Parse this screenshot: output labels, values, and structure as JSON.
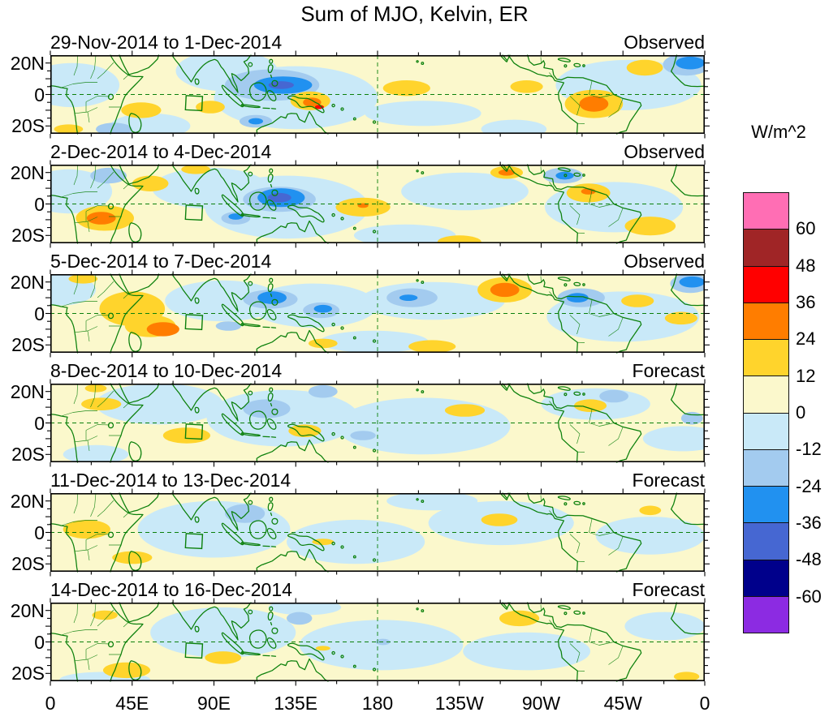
{
  "chart_data": {
    "type": "heatmap",
    "title": "Sum of MJO, Kelvin, ER",
    "units": "W/m^2",
    "projection": "tropical strip 25N-25S, longitude 0-360E",
    "colorbar": {
      "levels": [
        60,
        48,
        36,
        24,
        12,
        0,
        -12,
        -24,
        -36,
        -48,
        -60
      ],
      "tick_labels": [
        "60",
        "48",
        "36",
        "24",
        "12",
        "0",
        "-12",
        "-24",
        "-36",
        "-48",
        "-60"
      ],
      "colors": [
        "#FF6EB4",
        "#A02526",
        "#FF0000",
        "#FF7D00",
        "#FFD42C",
        "#FBF8CC",
        "#C9E9F8",
        "#A3CBEF",
        "#2191F0",
        "#4667D2",
        "#00008B",
        "#8C2BE2"
      ]
    },
    "lat_ticks": [
      {
        "label": "20N",
        "lat": 20
      },
      {
        "label": "0",
        "lat": 0
      },
      {
        "label": "20S",
        "lat": -20
      }
    ],
    "lon_ticks": [
      {
        "label": "0",
        "lon": 0
      },
      {
        "label": "45E",
        "lon": 45
      },
      {
        "label": "90E",
        "lon": 90
      },
      {
        "label": "135E",
        "lon": 135
      },
      {
        "label": "180",
        "lon": 180
      },
      {
        "label": "135W",
        "lon": 225
      },
      {
        "label": "90W",
        "lon": 270
      },
      {
        "label": "45W",
        "lon": 315
      },
      {
        "label": "0",
        "lon": 360
      }
    ],
    "panels": [
      {
        "period": "29-Nov-2014 to 1-Dec-2014",
        "label": "Observed",
        "anomalies": [
          [
            12,
            6,
            26,
            14,
            -6
          ],
          [
            97,
            15,
            28,
            13,
            -6
          ],
          [
            135,
            -2,
            45,
            20,
            -6
          ],
          [
            55,
            -20,
            22,
            8,
            -6
          ],
          [
            205,
            -12,
            32,
            8,
            -6
          ],
          [
            318,
            6,
            40,
            16,
            -6
          ],
          [
            255,
            -22,
            18,
            6,
            -6
          ],
          [
            122,
            6,
            26,
            10,
            -18
          ],
          [
            350,
            19,
            13,
            7,
            -18
          ],
          [
            113,
            -17,
            9,
            4,
            -18
          ],
          [
            35,
            -22,
            10,
            4,
            -18
          ],
          [
            128,
            6,
            16,
            5.5,
            -30
          ],
          [
            352,
            20,
            8,
            4,
            -30
          ],
          [
            113,
            -17,
            4,
            2,
            -30
          ],
          [
            127,
            6,
            7,
            2.5,
            -42
          ],
          [
            50,
            -10,
            11,
            5,
            18
          ],
          [
            88,
            -8,
            8,
            4,
            18
          ],
          [
            143,
            -4,
            11,
            6,
            18
          ],
          [
            196,
            4,
            13,
            5,
            18
          ],
          [
            262,
            5,
            9,
            4,
            18
          ],
          [
            299,
            -6,
            16,
            9,
            18
          ],
          [
            327,
            17,
            10,
            5,
            18
          ],
          [
            10,
            -22,
            8,
            3,
            18
          ],
          [
            299,
            -6,
            8,
            5,
            30
          ],
          [
            144,
            -5,
            5,
            3,
            30
          ],
          [
            148,
            -8,
            2.5,
            1.3,
            42
          ]
        ]
      },
      {
        "period": "2-Dec-2014 to 4-Dec-2014",
        "label": "Observed",
        "anomalies": [
          [
            10,
            8,
            24,
            14,
            -6
          ],
          [
            88,
            10,
            32,
            13,
            -6
          ],
          [
            130,
            -2,
            45,
            20,
            -6
          ],
          [
            228,
            8,
            35,
            12,
            -6
          ],
          [
            310,
            -2,
            38,
            16,
            -6
          ],
          [
            195,
            -20,
            28,
            7,
            -6
          ],
          [
            126,
            3,
            20,
            8,
            -18
          ],
          [
            282,
            18,
            11,
            5,
            -18
          ],
          [
            102,
            -9,
            8,
            4,
            -18
          ],
          [
            32,
            18,
            10,
            5,
            -18
          ],
          [
            127,
            4,
            13,
            6,
            -30
          ],
          [
            283,
            18,
            5,
            2.5,
            -30
          ],
          [
            102,
            -8,
            4,
            2,
            -30
          ],
          [
            126,
            4,
            6.5,
            3,
            -42
          ],
          [
            30,
            -9,
            16,
            8,
            18
          ],
          [
            55,
            13,
            10,
            5,
            18
          ],
          [
            172,
            -2,
            15,
            6,
            18
          ],
          [
            296,
            7,
            12,
            6,
            18
          ],
          [
            251,
            20,
            9,
            4,
            18
          ],
          [
            330,
            -14,
            14,
            6,
            18
          ],
          [
            225,
            -24,
            12,
            4,
            18
          ],
          [
            80,
            22,
            8,
            3,
            18
          ],
          [
            28,
            -9,
            8,
            4,
            30
          ],
          [
            296,
            8,
            4,
            2,
            30
          ],
          [
            251,
            20,
            4.5,
            2,
            30
          ],
          [
            172,
            -1,
            3,
            1.5,
            30
          ]
        ]
      },
      {
        "period": "5-Dec-2014 to 7-Dec-2014",
        "label": "Observed",
        "anomalies": [
          [
            5,
            15,
            20,
            10,
            -6
          ],
          [
            95,
            8,
            32,
            13,
            -6
          ],
          [
            145,
            5,
            35,
            14,
            -6
          ],
          [
            210,
            8,
            40,
            12,
            -6
          ],
          [
            315,
            -2,
            42,
            16,
            -6
          ],
          [
            178,
            -18,
            30,
            7,
            -6
          ],
          [
            121,
            9,
            15,
            6,
            -18
          ],
          [
            149,
            2,
            10,
            5,
            -18
          ],
          [
            199,
            10,
            14,
            6,
            -18
          ],
          [
            292,
            10,
            13,
            6,
            -18
          ],
          [
            352,
            19,
            11,
            6,
            -18
          ],
          [
            98,
            -8,
            7,
            3,
            -18
          ],
          [
            122,
            10,
            8,
            4,
            -30
          ],
          [
            150,
            3,
            5,
            2.5,
            -30
          ],
          [
            197,
            10,
            5,
            2,
            -30
          ],
          [
            290,
            10,
            6,
            3,
            -30
          ],
          [
            353,
            20,
            7,
            3.5,
            -30
          ],
          [
            45,
            3,
            18,
            11,
            18
          ],
          [
            55,
            -8,
            14,
            7,
            18
          ],
          [
            250,
            15,
            15,
            8,
            18
          ],
          [
            210,
            -21,
            13,
            4,
            18
          ],
          [
            323,
            8,
            9,
            4,
            18
          ],
          [
            347,
            -3,
            9,
            4,
            18
          ],
          [
            150,
            -19,
            8,
            3,
            18
          ],
          [
            18,
            22,
            8,
            3,
            18
          ],
          [
            62,
            -10,
            9,
            4.5,
            30
          ],
          [
            250,
            15,
            8,
            4.5,
            30
          ]
        ]
      },
      {
        "period": "8-Dec-2014 to 10-Dec-2014",
        "label": "Forecast",
        "anomalies": [
          [
            60,
            12,
            35,
            13,
            -6
          ],
          [
            128,
            3,
            42,
            18,
            -6
          ],
          [
            205,
            -2,
            48,
            18,
            -6
          ],
          [
            300,
            12,
            30,
            10,
            -6
          ],
          [
            348,
            -10,
            22,
            8,
            -6
          ],
          [
            25,
            -20,
            18,
            6,
            -6
          ],
          [
            119,
            9,
            13,
            6,
            -18
          ],
          [
            172,
            -8,
            7,
            3,
            -18
          ],
          [
            310,
            17,
            8,
            4,
            -18
          ],
          [
            150,
            20,
            8,
            4,
            -18
          ],
          [
            353,
            3,
            6,
            4,
            -18
          ],
          [
            28,
            12,
            11,
            4,
            18
          ],
          [
            75,
            -8,
            13,
            5,
            18
          ],
          [
            140,
            -5,
            9,
            4,
            18
          ],
          [
            228,
            8,
            11,
            4,
            18
          ],
          [
            297,
            11,
            9,
            4,
            18
          ],
          [
            25,
            22,
            6,
            2.5,
            18
          ]
        ]
      },
      {
        "period": "11-Dec-2014 to 13-Dec-2014",
        "label": "Forecast",
        "anomalies": [
          [
            90,
            2,
            42,
            18,
            -6
          ],
          [
            168,
            -6,
            38,
            14,
            -6
          ],
          [
            248,
            6,
            40,
            14,
            -6
          ],
          [
            330,
            -2,
            30,
            12,
            -6
          ],
          [
            210,
            20,
            25,
            6,
            -6
          ],
          [
            107,
            12,
            11,
            6,
            -18
          ],
          [
            20,
            2,
            13,
            6,
            18
          ],
          [
            45,
            -16,
            11,
            4,
            18
          ],
          [
            247,
            8,
            10,
            4,
            18
          ],
          [
            150,
            -6,
            6,
            2,
            18
          ],
          [
            330,
            14,
            6,
            3,
            18
          ]
        ]
      },
      {
        "period": "14-Dec-2014 to 16-Dec-2014",
        "label": "Forecast",
        "anomalies": [
          [
            95,
            6,
            40,
            16,
            -6
          ],
          [
            182,
            -2,
            45,
            16,
            -6
          ],
          [
            262,
            -6,
            35,
            12,
            -6
          ],
          [
            338,
            10,
            22,
            9,
            -6
          ],
          [
            30,
            -24,
            25,
            5,
            -6
          ],
          [
            140,
            22,
            20,
            5,
            -6
          ],
          [
            137,
            15,
            7,
            4,
            -18
          ],
          [
            183,
            0,
            4,
            2,
            -18
          ],
          [
            42,
            -18,
            13,
            5,
            18
          ],
          [
            95,
            -10,
            10,
            4,
            18
          ],
          [
            30,
            17,
            7,
            3,
            18
          ],
          [
            258,
            15,
            11,
            5,
            18
          ],
          [
            150,
            -4,
            4,
            1.5,
            18
          ],
          [
            350,
            -22,
            7,
            3,
            18
          ]
        ]
      }
    ]
  }
}
